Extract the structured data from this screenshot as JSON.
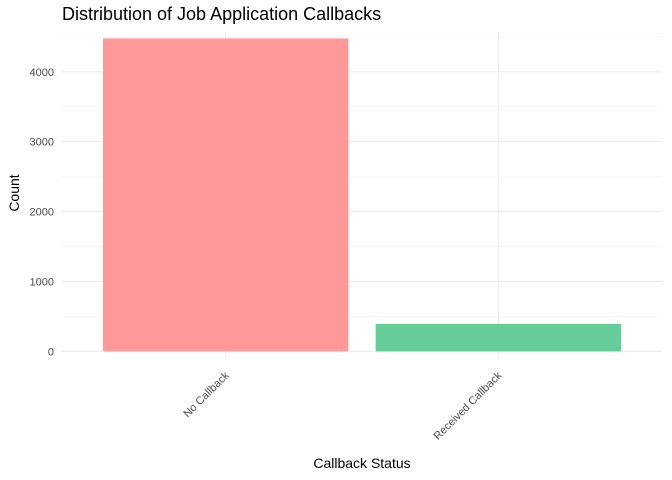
{
  "chart_data": {
    "type": "bar",
    "title": "Distribution of Job Application Callbacks",
    "xlabel": "Callback Status",
    "ylabel": "Count",
    "categories": [
      "No Callback",
      "Received Callback"
    ],
    "values": [
      4478,
      392
    ],
    "colors": [
      "#FF9999",
      "#66CC99"
    ],
    "ylim": [
      -96,
      4570
    ],
    "yticks": [
      0,
      1000,
      2000,
      3000,
      4000
    ],
    "grid": true,
    "legend": "none"
  }
}
